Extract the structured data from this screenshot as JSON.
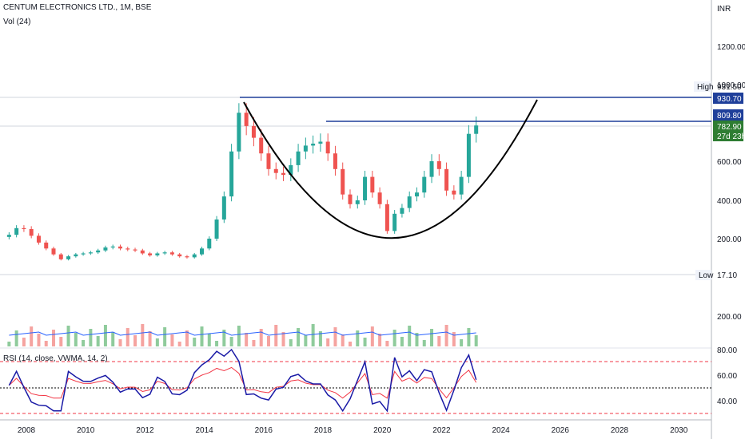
{
  "header": {
    "symbol": "CENTUM ELECTRONICS LTD., 1M, BSE",
    "volume_label": "Vol (24)",
    "rsi_label": "RSI (14, close, VWMA, 14, 2)",
    "currency": "INR"
  },
  "colors": {
    "up": "#26a69a",
    "down": "#ef5350",
    "vol_up": "#8fcb9c",
    "vol_down": "#f5a3a0",
    "vol_ma": "#2962ff",
    "rsi": "#1a1aa6",
    "rsi_ma": "#f23645",
    "level_line": "#1f3f9a",
    "price_tag": "#2e7d32",
    "cup": "#000000"
  },
  "chart_data": {
    "type": "candlestick",
    "price_axis": {
      "ticks": [
        "1200.00",
        "1000.00",
        "800.00",
        "600.00",
        "400.00",
        "200.00"
      ],
      "unit": "INR"
    },
    "time_axis": {
      "ticks": [
        "2008",
        "2010",
        "2012",
        "2014",
        "2016",
        "2018",
        "2020",
        "2022",
        "2024",
        "2026",
        "2028",
        "2030"
      ]
    },
    "labels": {
      "high_label": "High",
      "high_value": "931.50",
      "low_label": "Low",
      "low_value": "17.10",
      "resistance_1": "930.70",
      "resistance_2": "809.80",
      "last_price": "782.90",
      "countdown": "27d 23h",
      "volume_tick": "200.00"
    },
    "close_series": [
      {
        "date": "2007-06",
        "close": 220
      },
      {
        "date": "2007-09",
        "close": 255
      },
      {
        "date": "2007-12",
        "close": 250
      },
      {
        "date": "2008-03",
        "close": 215
      },
      {
        "date": "2008-06",
        "close": 180
      },
      {
        "date": "2008-09",
        "close": 150
      },
      {
        "date": "2008-12",
        "close": 120
      },
      {
        "date": "2009-03",
        "close": 95
      },
      {
        "date": "2009-06",
        "close": 110
      },
      {
        "date": "2009-09",
        "close": 120
      },
      {
        "date": "2009-12",
        "close": 125
      },
      {
        "date": "2010-03",
        "close": 130
      },
      {
        "date": "2010-06",
        "close": 140
      },
      {
        "date": "2010-09",
        "close": 155
      },
      {
        "date": "2010-12",
        "close": 160
      },
      {
        "date": "2011-03",
        "close": 150
      },
      {
        "date": "2011-06",
        "close": 145
      },
      {
        "date": "2011-09",
        "close": 140
      },
      {
        "date": "2011-12",
        "close": 125
      },
      {
        "date": "2012-03",
        "close": 115
      },
      {
        "date": "2012-06",
        "close": 125
      },
      {
        "date": "2012-09",
        "close": 130
      },
      {
        "date": "2012-12",
        "close": 120
      },
      {
        "date": "2013-03",
        "close": 110
      },
      {
        "date": "2013-06",
        "close": 105
      },
      {
        "date": "2013-09",
        "close": 120
      },
      {
        "date": "2013-12",
        "close": 150
      },
      {
        "date": "2014-03",
        "close": 200
      },
      {
        "date": "2014-06",
        "close": 300
      },
      {
        "date": "2014-09",
        "close": 420
      },
      {
        "date": "2014-12",
        "close": 650
      },
      {
        "date": "2015-03",
        "close": 850
      },
      {
        "date": "2015-06",
        "close": 780
      },
      {
        "date": "2015-09",
        "close": 720
      },
      {
        "date": "2015-12",
        "close": 640
      },
      {
        "date": "2016-03",
        "close": 560
      },
      {
        "date": "2016-06",
        "close": 540
      },
      {
        "date": "2016-09",
        "close": 530
      },
      {
        "date": "2016-12",
        "close": 580
      },
      {
        "date": "2017-03",
        "close": 650
      },
      {
        "date": "2017-06",
        "close": 680
      },
      {
        "date": "2017-09",
        "close": 690
      },
      {
        "date": "2017-12",
        "close": 700
      },
      {
        "date": "2018-03",
        "close": 640
      },
      {
        "date": "2018-06",
        "close": 560
      },
      {
        "date": "2018-09",
        "close": 430
      },
      {
        "date": "2018-12",
        "close": 380
      },
      {
        "date": "2019-03",
        "close": 400
      },
      {
        "date": "2019-06",
        "close": 520
      },
      {
        "date": "2019-09",
        "close": 440
      },
      {
        "date": "2019-12",
        "close": 380
      },
      {
        "date": "2020-03",
        "close": 240
      },
      {
        "date": "2020-06",
        "close": 330
      },
      {
        "date": "2020-09",
        "close": 360
      },
      {
        "date": "2020-12",
        "close": 420
      },
      {
        "date": "2021-03",
        "close": 440
      },
      {
        "date": "2021-06",
        "close": 520
      },
      {
        "date": "2021-09",
        "close": 600
      },
      {
        "date": "2021-12",
        "close": 560
      },
      {
        "date": "2022-03",
        "close": 450
      },
      {
        "date": "2022-06",
        "close": 430
      },
      {
        "date": "2022-09",
        "close": 520
      },
      {
        "date": "2022-12",
        "close": 740
      },
      {
        "date": "2023-03",
        "close": 782.9
      }
    ],
    "rsi_axis": {
      "ticks": [
        "80.00",
        "60.00",
        "40.00"
      ]
    }
  }
}
